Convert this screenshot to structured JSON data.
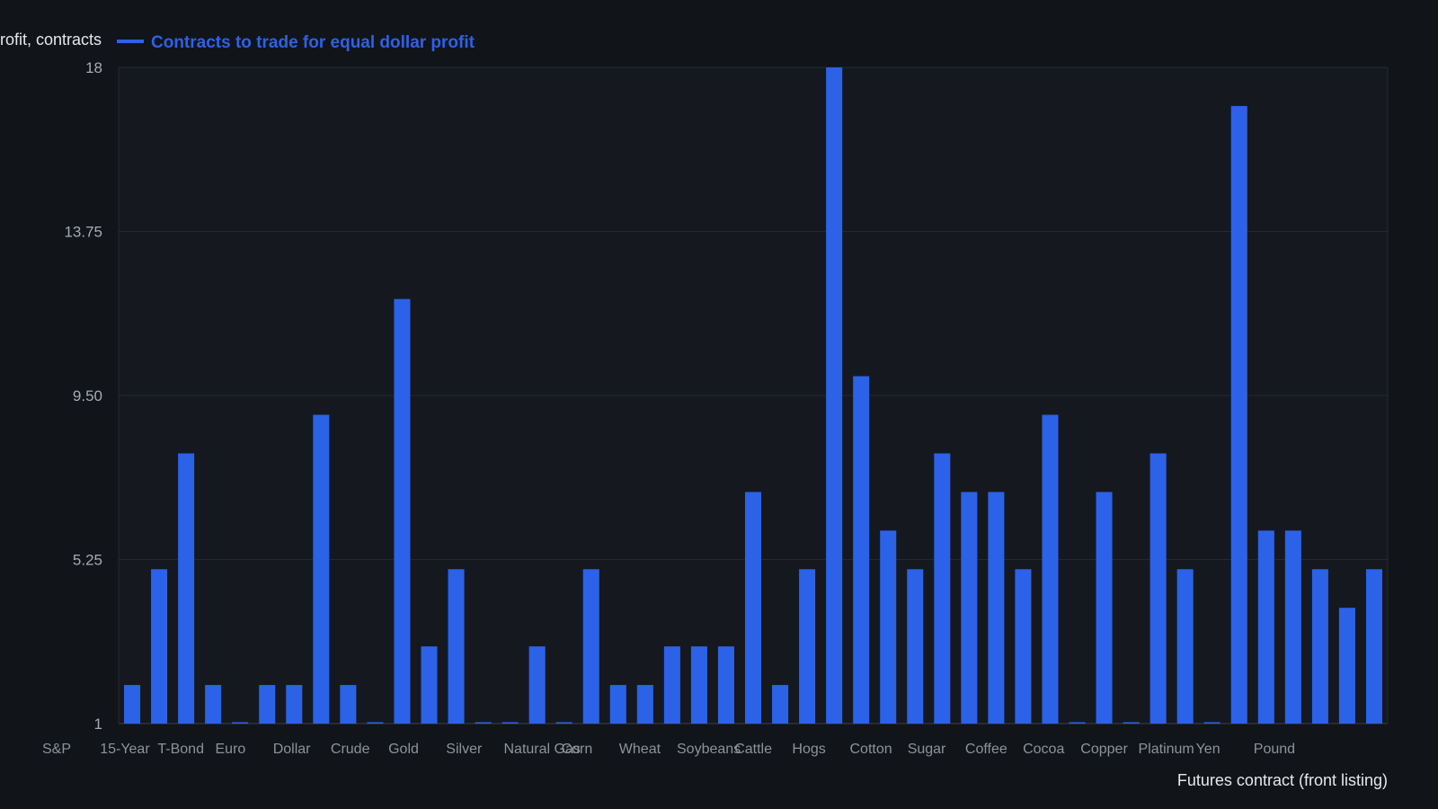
{
  "chart_data": {
    "type": "bar",
    "title": "",
    "ylabel": "Contracts to trade for equal dollar profit, contracts",
    "xlabel": "Futures contract (front listing)",
    "ylim": [
      1,
      18
    ],
    "yticks": [
      "1",
      "5.25",
      "9.50",
      "13.75",
      "18"
    ],
    "grid": true,
    "legend_position": "top-left",
    "series": [
      {
        "name": "Contracts to trade for equal dollar profit",
        "color": "#2c62e8",
        "values": [
          2,
          5,
          8,
          2,
          1,
          2,
          2,
          9,
          2,
          1,
          12,
          3,
          5,
          1,
          1,
          3,
          1,
          5,
          2,
          2,
          3,
          3,
          3,
          7,
          2,
          5,
          18,
          10,
          6,
          5,
          8,
          7,
          7,
          5,
          9,
          1,
          7,
          1,
          8,
          5,
          1,
          17,
          6,
          6,
          5,
          4,
          5
        ]
      }
    ],
    "categories_visible_fragments": [
      "S&P",
      "15-Year",
      "T-Bond",
      "Euro",
      "Dollar",
      "Crude",
      "Gold",
      "Silver",
      "Natural Gas",
      "Corn",
      "Wheat",
      "Soybeans",
      "Cattle",
      "Hogs",
      "Cotton",
      "Sugar",
      "Coffee",
      "Cocoa",
      "Copper",
      "Platinum",
      "Yen",
      "Pound"
    ]
  },
  "colors": {
    "background": "#111419",
    "plot_background": "#15191f",
    "bar": "#2c62e8",
    "grid": "#252a31",
    "axis": "#3a4048"
  }
}
